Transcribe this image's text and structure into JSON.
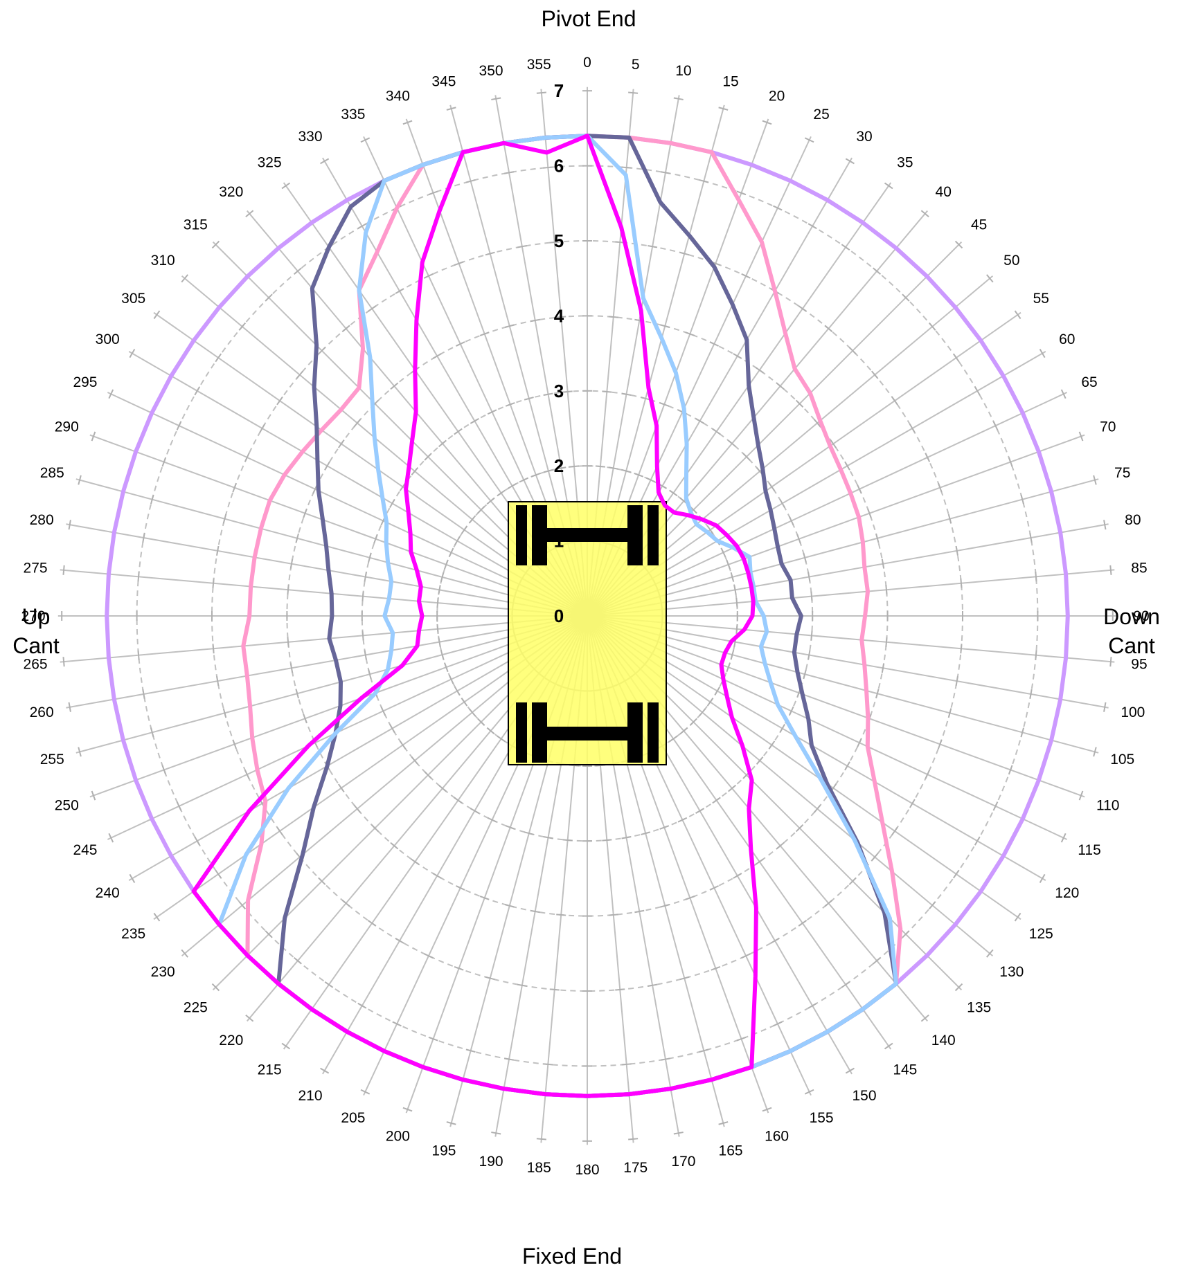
{
  "chart_data": {
    "type": "polar-line",
    "labels": {
      "top": "Pivot End",
      "bottom": "Fixed End",
      "left_line1": "Up",
      "left_line2": "Cant",
      "right_line1": "Down",
      "right_line2": "Cant"
    },
    "angle_unit": "degrees",
    "angle_zero": "top",
    "angle_direction": "clockwise",
    "angles": [
      0,
      5,
      10,
      15,
      20,
      25,
      30,
      35,
      40,
      45,
      50,
      55,
      60,
      65,
      70,
      75,
      80,
      85,
      90,
      95,
      100,
      105,
      110,
      115,
      120,
      125,
      130,
      135,
      140,
      145,
      150,
      155,
      160,
      165,
      170,
      175,
      180,
      185,
      190,
      195,
      200,
      205,
      210,
      215,
      220,
      225,
      230,
      235,
      240,
      245,
      250,
      255,
      260,
      265,
      270,
      275,
      280,
      285,
      290,
      295,
      300,
      305,
      310,
      315,
      320,
      325,
      330,
      335,
      340,
      345,
      350,
      355
    ],
    "angle_labels": [
      "0",
      "5",
      "10",
      "15",
      "20",
      "25",
      "30",
      "35",
      "40",
      "45",
      "50",
      "55",
      "60",
      "65",
      "70",
      "75",
      "80",
      "85",
      "90",
      "95",
      "100",
      "105",
      "110",
      "115",
      "120",
      "125",
      "130",
      "135",
      "140",
      "145",
      "150",
      "155",
      "160",
      "165",
      "170",
      "175",
      "180",
      "185",
      "190",
      "195",
      "200",
      "205",
      "210",
      "215",
      "220",
      "225",
      "230",
      "235",
      "240",
      "245",
      "250",
      "255",
      "260",
      "265",
      "270",
      "275",
      "280",
      "285",
      "290",
      "295",
      "300",
      "305",
      "310",
      "315",
      "320",
      "325",
      "330",
      "335",
      "340",
      "345",
      "350",
      "355"
    ],
    "radial_range": [
      0,
      6.4
    ],
    "radial_ticks": [
      "0",
      "1",
      "2",
      "3",
      "4",
      "5",
      "6",
      "7"
    ],
    "grid": true,
    "center_graphic": "yellow vehicle outline with two axles",
    "series": [
      {
        "color": "#cc99ff",
        "values": [
          6.4,
          6.4,
          6.4,
          6.4,
          6.4,
          6.4,
          6.4,
          6.4,
          6.4,
          6.4,
          6.4,
          6.4,
          6.4,
          6.4,
          6.4,
          6.4,
          6.4,
          6.4,
          6.4,
          6.4,
          6.4,
          6.4,
          6.4,
          6.4,
          6.4,
          6.4,
          6.4,
          6.4,
          6.4,
          6.4,
          6.4,
          6.4,
          6.4,
          6.4,
          6.4,
          6.4,
          6.4,
          6.4,
          6.4,
          6.4,
          6.4,
          6.4,
          6.4,
          6.4,
          6.4,
          6.4,
          6.4,
          6.4,
          6.4,
          6.4,
          6.4,
          6.4,
          6.4,
          6.4,
          6.4,
          6.4,
          6.4,
          6.4,
          6.4,
          6.4,
          6.4,
          6.4,
          6.4,
          6.4,
          6.4,
          6.4,
          6.4,
          6.4,
          6.4,
          6.4,
          6.4,
          6.4
        ]
      },
      {
        "color": "#ff99cc",
        "values": [
          6.4,
          6.4,
          6.4,
          6.4,
          5.9,
          5.5,
          5.0,
          4.6,
          4.3,
          4.2,
          4.05,
          3.95,
          3.9,
          3.87,
          3.85,
          3.8,
          3.75,
          3.75,
          3.7,
          3.67,
          3.75,
          3.85,
          3.98,
          4.12,
          4.42,
          4.8,
          5.3,
          5.9,
          6.4,
          6.4,
          6.4,
          6.4,
          6.4,
          6.4,
          6.4,
          6.4,
          6.4,
          6.4,
          6.4,
          6.4,
          6.4,
          6.4,
          6.4,
          6.4,
          6.4,
          6.4,
          5.9,
          5.3,
          4.95,
          4.85,
          4.75,
          4.65,
          4.6,
          4.6,
          4.5,
          4.5,
          4.5,
          4.5,
          4.5,
          4.45,
          4.38,
          4.32,
          4.28,
          4.3,
          4.65,
          5.3,
          5.6,
          6.0,
          6.4,
          6.4,
          6.4,
          6.4
        ]
      },
      {
        "color": "#666699",
        "values": [
          6.4,
          6.4,
          5.6,
          5.25,
          4.95,
          4.58,
          4.25,
          3.75,
          3.45,
          3.22,
          3.05,
          2.9,
          2.82,
          2.75,
          2.7,
          2.68,
          2.75,
          2.74,
          2.85,
          2.8,
          2.8,
          2.9,
          3.05,
          3.25,
          3.45,
          3.9,
          4.7,
          5.6,
          6.4,
          6.4,
          6.4,
          6.4,
          6.4,
          6.4,
          6.4,
          6.4,
          6.4,
          6.4,
          6.4,
          6.4,
          6.4,
          6.4,
          6.4,
          6.4,
          6.4,
          5.7,
          4.95,
          4.45,
          4.0,
          3.7,
          3.5,
          3.4,
          3.4,
          3.45,
          3.4,
          3.42,
          3.5,
          3.6,
          3.75,
          3.95,
          4.15,
          4.4,
          4.75,
          5.1,
          5.7,
          6.0,
          6.3,
          6.4,
          6.4,
          6.4,
          6.4,
          6.4
        ]
      },
      {
        "color": "#99ccff",
        "values": [
          6.4,
          5.9,
          4.3,
          3.83,
          3.45,
          3.05,
          2.65,
          2.3,
          2.05,
          1.95,
          1.9,
          1.95,
          2.0,
          2.15,
          2.3,
          2.25,
          2.25,
          2.25,
          2.35,
          2.4,
          2.35,
          2.45,
          2.6,
          2.8,
          3.2,
          3.8,
          4.65,
          5.7,
          6.4,
          6.4,
          6.4,
          6.4,
          6.4,
          6.4,
          6.4,
          6.4,
          6.4,
          6.4,
          6.4,
          6.4,
          6.4,
          6.4,
          6.4,
          6.4,
          6.4,
          6.4,
          6.4,
          5.55,
          4.6,
          3.7,
          3.0,
          2.75,
          2.65,
          2.6,
          2.7,
          2.65,
          2.65,
          2.75,
          2.85,
          2.95,
          3.15,
          3.4,
          3.7,
          4.05,
          4.5,
          5.3,
          5.9,
          6.4,
          6.4,
          6.4,
          6.4,
          6.4
        ]
      },
      {
        "color": "#ff00ff",
        "values": [
          6.4,
          5.2,
          4.13,
          3.15,
          2.7,
          2.2,
          1.9,
          1.8,
          1.8,
          1.9,
          2.0,
          2.1,
          2.15,
          2.2,
          2.22,
          2.22,
          2.22,
          2.22,
          2.2,
          2.1,
          1.95,
          1.9,
          1.9,
          2.0,
          2.15,
          2.35,
          2.7,
          3.1,
          3.35,
          3.8,
          4.5,
          5.3,
          6.4,
          6.4,
          6.4,
          6.4,
          6.4,
          6.4,
          6.4,
          6.4,
          6.4,
          6.4,
          6.4,
          6.4,
          6.4,
          6.4,
          6.4,
          6.4,
          5.2,
          4.1,
          3.2,
          2.55,
          2.3,
          2.25,
          2.2,
          2.25,
          2.25,
          2.35,
          2.5,
          2.6,
          2.75,
          2.95,
          3.1,
          3.3,
          3.55,
          4.0,
          4.55,
          5.2,
          5.75,
          6.4,
          6.4,
          6.2
        ]
      }
    ]
  }
}
